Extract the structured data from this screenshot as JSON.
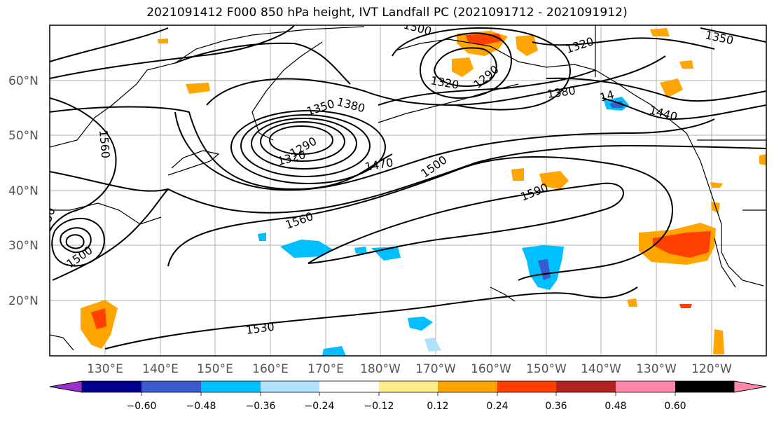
{
  "title": "2021091412 F000 850 hPa height, IVT Landfall PC (2021091712 - 2021091912)",
  "lat_labels": [
    "60°N",
    "50°N",
    "40°N",
    "30°N",
    "20°N"
  ],
  "lon_labels": [
    "130°E",
    "140°E",
    "150°E",
    "160°E",
    "170°E",
    "180°W",
    "170°W",
    "160°W",
    "150°W",
    "140°W",
    "130°W",
    "120°W"
  ],
  "colorbar": {
    "colors": [
      "#9932cc",
      "#00008b",
      "#3a5bcd",
      "#00bfff",
      "#b0e2ff",
      "#ffffff",
      "#ffec8b",
      "#ffa500",
      "#ff4000",
      "#b22222",
      "#ff88aa"
    ],
    "tick_labels": [
      "−0.60",
      "−0.48",
      "−0.36",
      "−0.24",
      "−0.12",
      "0.12",
      "0.24",
      "0.36",
      "0.48",
      "0.60"
    ]
  },
  "contour_labels": [
    "1350",
    "1380",
    "1320",
    "1290",
    "1470",
    "1500",
    "1560",
    "1590",
    "1320",
    "1290",
    "1380",
    "1440",
    "1350",
    "1320",
    "1500",
    "1530",
    "1560",
    "1500",
    "14",
    "50"
  ]
}
